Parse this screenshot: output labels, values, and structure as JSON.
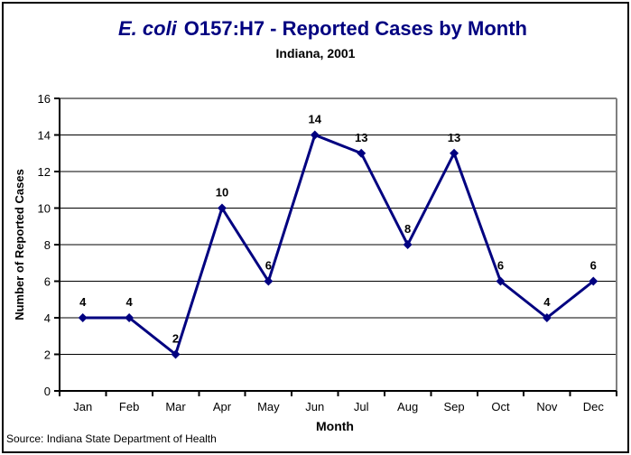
{
  "title": {
    "italic_part": "E. coli",
    "rest_part": "O157:H7 - Reported Cases by Month",
    "subtitle": "Indiana, 2001"
  },
  "source_note": "Source: Indiana State Department of Health",
  "colors": {
    "series": "#000080",
    "title_text": "#000080",
    "gridline": "#000000",
    "plot_border": "#808080",
    "axis": "#000000",
    "text": "#000000",
    "background": "#ffffff"
  },
  "chart_data": {
    "type": "line",
    "title": "E. coli O157:H7 - Reported Cases by Month",
    "subtitle": "Indiana, 2001",
    "categories": [
      "Jan",
      "Feb",
      "Mar",
      "Apr",
      "May",
      "Jun",
      "Jul",
      "Aug",
      "Sep",
      "Oct",
      "Nov",
      "Dec"
    ],
    "values": [
      4,
      4,
      2,
      10,
      6,
      14,
      13,
      8,
      13,
      6,
      4,
      6
    ],
    "xlabel": "Month",
    "ylabel": "Number of Reported Cases",
    "ylim": [
      0,
      16
    ],
    "ytick_step": 2,
    "grid": true,
    "legend": false,
    "marker": "diamond",
    "data_labels": true,
    "line_color": "#000080",
    "source": "Source: Indiana State Department of Health"
  }
}
